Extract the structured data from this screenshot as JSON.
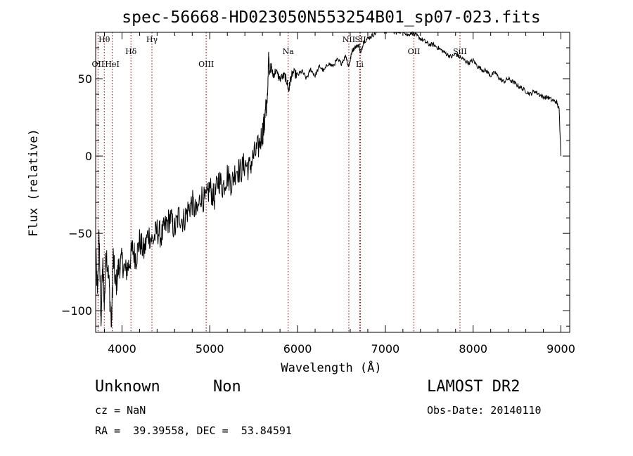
{
  "header": {
    "title": "spec-56668-HD023050N553254B01_sp07-023.fits"
  },
  "info": {
    "class_label": "Unknown",
    "subclass_label": "Non",
    "survey": "LAMOST DR2",
    "cz": "cz = NaN",
    "obs_date": "Obs-Date: 20140110",
    "coords": "RA =  39.39558, DEC =  53.84591"
  },
  "chart_data": {
    "type": "line",
    "title": "spec-56668-HD023050N553254B01_sp07-023.fits",
    "xlabel": "Wavelength (Å)",
    "ylabel": "Flux (relative)",
    "xlim": [
      3700,
      9100
    ],
    "ylim": [
      -114,
      80
    ],
    "x_ticks": [
      4000,
      5000,
      6000,
      7000,
      8000,
      9000
    ],
    "y_ticks": [
      -100,
      -50,
      0,
      50
    ],
    "grid": false,
    "line_color": "#000000",
    "marker_color": "#8b0000",
    "spectral_lines": [
      {
        "label": "Hθ",
        "x": 3798,
        "row": 0
      },
      {
        "label": "OII",
        "x": 3727,
        "row": 1
      },
      {
        "label": "HeI",
        "x": 3889,
        "row": 1
      },
      {
        "label": "Hδ",
        "x": 4102,
        "row": 2
      },
      {
        "label": "Hγ",
        "x": 4341,
        "row": 3
      },
      {
        "label": "OIII",
        "x": 4959,
        "row": 1
      },
      {
        "label": "Na",
        "x": 5893,
        "row": 4
      },
      {
        "label": "NII",
        "x": 6584,
        "row": 0
      },
      {
        "label": "SII",
        "x": 6717,
        "row": 0
      },
      {
        "label": "Li",
        "x": 6708,
        "row": 5
      },
      {
        "label": "OII",
        "x": 7325,
        "row": 4
      },
      {
        "label": "SiII",
        "x": 7850,
        "row": 4
      }
    ],
    "series": [
      {
        "x": [
          3700,
          3720,
          3740,
          3760,
          3780,
          3800,
          3820,
          3850,
          3880,
          3900,
          3930,
          3960,
          4000,
          4040,
          4080,
          4120,
          4160,
          4200,
          4250,
          4300,
          4350,
          4400,
          4450,
          4500,
          4550,
          4600,
          4650,
          4700,
          4750,
          4800,
          4850,
          4900,
          4950,
          5000,
          5050,
          5100,
          5150,
          5200,
          5250,
          5300,
          5350,
          5400,
          5450,
          5500,
          5550,
          5600,
          5620,
          5640,
          5660,
          5670,
          5680,
          5700,
          5720,
          5750,
          5800,
          5850,
          5880,
          5900,
          5920,
          5950,
          6000,
          6050,
          6100,
          6150,
          6200,
          6250,
          6300,
          6350,
          6400,
          6450,
          6500,
          6550,
          6580,
          6600,
          6620,
          6650,
          6700,
          6720,
          6750,
          6800,
          6850,
          6900,
          6950,
          7000,
          7050,
          7100,
          7150,
          7200,
          7250,
          7300,
          7350,
          7400,
          7450,
          7500,
          7550,
          7600,
          7650,
          7700,
          7750,
          7800,
          7850,
          7900,
          7950,
          8000,
          8050,
          8100,
          8150,
          8200,
          8250,
          8300,
          8350,
          8400,
          8450,
          8500,
          8550,
          8600,
          8650,
          8700,
          8750,
          8800,
          8850,
          8900,
          8950,
          8980,
          9000
        ],
        "y": [
          -60,
          -90,
          -50,
          -108,
          -70,
          -95,
          -60,
          -80,
          -110,
          -65,
          -85,
          -72,
          -68,
          -75,
          -70,
          -60,
          -66,
          -55,
          -62,
          -50,
          -55,
          -48,
          -52,
          -45,
          -40,
          -48,
          -38,
          -42,
          -35,
          -30,
          -38,
          -25,
          -30,
          -20,
          -28,
          -15,
          -20,
          -12,
          -18,
          -8,
          -10,
          -5,
          -8,
          0,
          5,
          15,
          20,
          30,
          40,
          68,
          55,
          58,
          52,
          55,
          50,
          52,
          48,
          42,
          50,
          54,
          52,
          55,
          50,
          56,
          52,
          58,
          55,
          60,
          58,
          62,
          60,
          65,
          58,
          62,
          68,
          70,
          72,
          66,
          74,
          76,
          78,
          80,
          82,
          80,
          82,
          80,
          80,
          82,
          78,
          80,
          78,
          76,
          74,
          72,
          72,
          70,
          68,
          66,
          64,
          66,
          64,
          62,
          60,
          62,
          58,
          56,
          55,
          52,
          54,
          50,
          48,
          50,
          48,
          46,
          44,
          42,
          40,
          42,
          40,
          38,
          38,
          36,
          35,
          30,
          0
        ]
      }
    ]
  }
}
